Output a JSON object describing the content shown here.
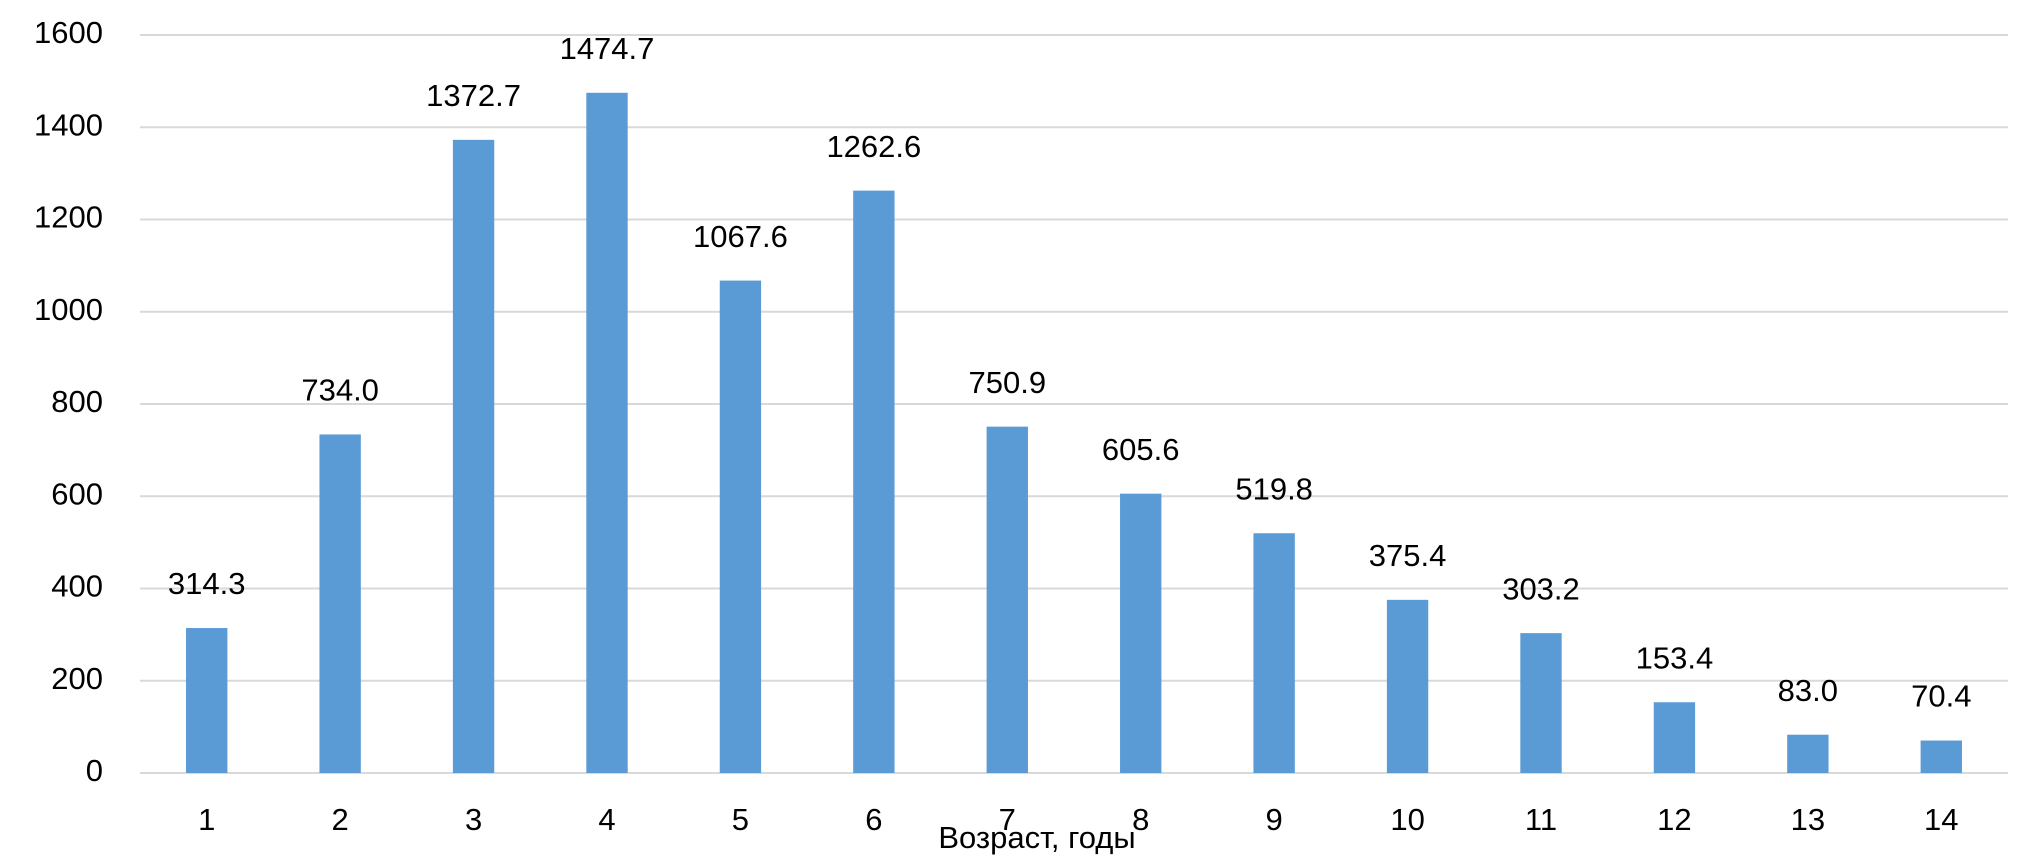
{
  "chart_data": {
    "type": "bar",
    "x_label": "Возраст, годы",
    "categories": [
      "1",
      "2",
      "3",
      "4",
      "5",
      "6",
      "7",
      "8",
      "9",
      "10",
      "11",
      "12",
      "13",
      "14"
    ],
    "values": [
      314.3,
      734.0,
      1372.7,
      1474.7,
      1067.6,
      1262.6,
      750.9,
      605.6,
      519.8,
      375.4,
      303.2,
      153.4,
      83.0,
      70.4
    ],
    "value_labels": [
      "314.3",
      "734.0",
      "1372.7",
      "1474.7",
      "1067.6",
      "1262.6",
      "750.9",
      "605.6",
      "519.8",
      "375.4",
      "303.2",
      "153.4",
      "83.0",
      "70.4"
    ],
    "color": "#5b9bd5",
    "ylim": [
      0,
      1600
    ],
    "yticks": [
      0,
      200,
      400,
      600,
      800,
      1000,
      1200,
      1400,
      1600
    ],
    "grid": true
  }
}
